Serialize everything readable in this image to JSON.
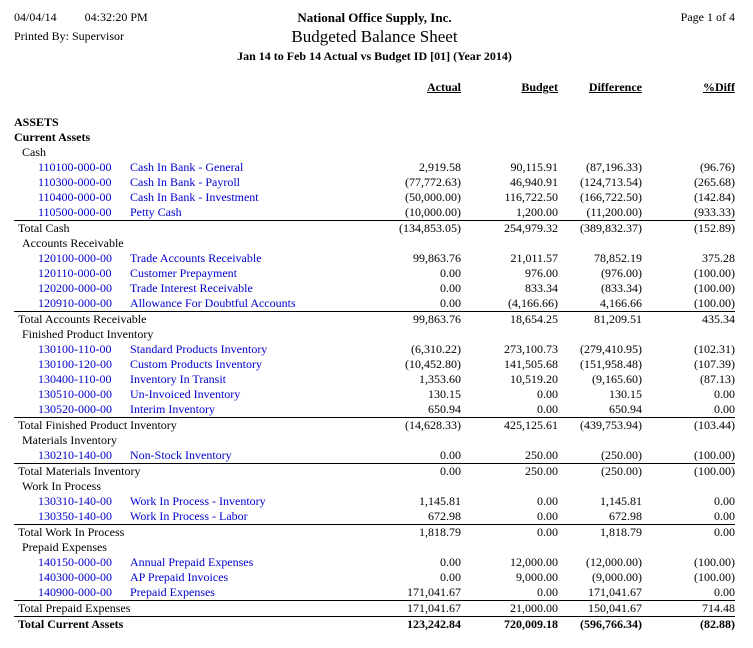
{
  "header": {
    "date": "04/04/14",
    "time": "04:32:20 PM",
    "printed_by": "Printed By: Supervisor",
    "company": "National Office Supply, Inc.",
    "title": "Budgeted Balance Sheet",
    "subtitle": "Jan 14 to Feb 14 Actual vs Budget ID [01] (Year 2014)",
    "page": "Page 1 of 4"
  },
  "colors": {
    "link_blue": "#0000cc"
  },
  "columns": [
    "Actual",
    "Budget",
    "Difference",
    "%Diff"
  ],
  "rows": [
    {
      "type": "section",
      "label": "ASSETS"
    },
    {
      "type": "section",
      "label": "Current Assets"
    },
    {
      "type": "group",
      "label": "Cash"
    },
    {
      "type": "detail",
      "account": "110100-000-00",
      "name": "Cash In Bank - General",
      "values": [
        "2,919.58",
        "90,115.91",
        "(87,196.33)",
        "(96.76)"
      ]
    },
    {
      "type": "detail",
      "account": "110300-000-00",
      "name": "Cash In Bank - Payroll",
      "values": [
        "(77,772.63)",
        "46,940.91",
        "(124,713.54)",
        "(265.68)"
      ]
    },
    {
      "type": "detail",
      "account": "110400-000-00",
      "name": "Cash In Bank - Investment",
      "values": [
        "(50,000.00)",
        "116,722.50",
        "(166,722.50)",
        "(142.84)"
      ]
    },
    {
      "type": "detail",
      "account": "110500-000-00",
      "name": "Petty Cash",
      "values": [
        "(10,000.00)",
        "1,200.00",
        "(11,200.00)",
        "(933.33)"
      ]
    },
    {
      "type": "total",
      "label": "Total Cash",
      "values": [
        "(134,853.05)",
        "254,979.32",
        "(389,832.37)",
        "(152.89)"
      ]
    },
    {
      "type": "group",
      "label": "Accounts Receivable"
    },
    {
      "type": "detail",
      "account": "120100-000-00",
      "name": "Trade Accounts Receivable",
      "values": [
        "99,863.76",
        "21,011.57",
        "78,852.19",
        "375.28"
      ]
    },
    {
      "type": "detail",
      "account": "120110-000-00",
      "name": "Customer Prepayment",
      "values": [
        "0.00",
        "976.00",
        "(976.00)",
        "(100.00)"
      ]
    },
    {
      "type": "detail",
      "account": "120200-000-00",
      "name": "Trade Interest Receivable",
      "values": [
        "0.00",
        "833.34",
        "(833.34)",
        "(100.00)"
      ]
    },
    {
      "type": "detail",
      "account": "120910-000-00",
      "name": "Allowance For Doubtful Accounts",
      "values": [
        "0.00",
        "(4,166.66)",
        "4,166.66",
        "(100.00)"
      ]
    },
    {
      "type": "total",
      "label": "Total Accounts Receivable",
      "values": [
        "99,863.76",
        "18,654.25",
        "81,209.51",
        "435.34"
      ]
    },
    {
      "type": "group",
      "label": "Finished Product Inventory"
    },
    {
      "type": "detail",
      "account": "130100-110-00",
      "name": "Standard Products Inventory",
      "values": [
        "(6,310.22)",
        "273,100.73",
        "(279,410.95)",
        "(102.31)"
      ]
    },
    {
      "type": "detail",
      "account": "130100-120-00",
      "name": "Custom Products Inventory",
      "values": [
        "(10,452.80)",
        "141,505.68",
        "(151,958.48)",
        "(107.39)"
      ]
    },
    {
      "type": "detail",
      "account": "130400-110-00",
      "name": "Inventory In Transit",
      "values": [
        "1,353.60",
        "10,519.20",
        "(9,165.60)",
        "(87.13)"
      ]
    },
    {
      "type": "detail",
      "account": "130510-000-00",
      "name": "Un-Invoiced Inventory",
      "values": [
        "130.15",
        "0.00",
        "130.15",
        "0.00"
      ]
    },
    {
      "type": "detail",
      "account": "130520-000-00",
      "name": "Interim Inventory",
      "values": [
        "650.94",
        "0.00",
        "650.94",
        "0.00"
      ]
    },
    {
      "type": "total",
      "label": "Total Finished Product Inventory",
      "values": [
        "(14,628.33)",
        "425,125.61",
        "(439,753.94)",
        "(103.44)"
      ]
    },
    {
      "type": "group",
      "label": "Materials Inventory"
    },
    {
      "type": "detail",
      "account": "130210-140-00",
      "name": "Non-Stock Inventory",
      "values": [
        "0.00",
        "250.00",
        "(250.00)",
        "(100.00)"
      ]
    },
    {
      "type": "total",
      "label": "Total Materials Inventory",
      "values": [
        "0.00",
        "250.00",
        "(250.00)",
        "(100.00)"
      ]
    },
    {
      "type": "group",
      "label": "Work In Process"
    },
    {
      "type": "detail",
      "account": "130310-140-00",
      "name": "Work In Process - Inventory",
      "values": [
        "1,145.81",
        "0.00",
        "1,145.81",
        "0.00"
      ]
    },
    {
      "type": "detail",
      "account": "130350-140-00",
      "name": "Work In Process - Labor",
      "values": [
        "672.98",
        "0.00",
        "672.98",
        "0.00"
      ]
    },
    {
      "type": "total",
      "label": "Total Work In Process",
      "values": [
        "1,818.79",
        "0.00",
        "1,818.79",
        "0.00"
      ]
    },
    {
      "type": "group",
      "label": "Prepaid Expenses"
    },
    {
      "type": "detail",
      "account": "140150-000-00",
      "name": "Annual Prepaid Expenses",
      "values": [
        "0.00",
        "12,000.00",
        "(12,000.00)",
        "(100.00)"
      ]
    },
    {
      "type": "detail",
      "account": "140300-000-00",
      "name": "AP Prepaid Invoices",
      "values": [
        "0.00",
        "9,000.00",
        "(9,000.00)",
        "(100.00)"
      ]
    },
    {
      "type": "detail",
      "account": "140900-000-00",
      "name": "Prepaid Expenses",
      "values": [
        "171,041.67",
        "0.00",
        "171,041.67",
        "0.00"
      ]
    },
    {
      "type": "total",
      "label": "Total Prepaid Expenses",
      "values": [
        "171,041.67",
        "21,000.00",
        "150,041.67",
        "714.48"
      ]
    },
    {
      "type": "grandtotal",
      "label": "Total Current Assets",
      "values": [
        "123,242.84",
        "720,009.18",
        "(596,766.34)",
        "(82.88)"
      ]
    }
  ]
}
